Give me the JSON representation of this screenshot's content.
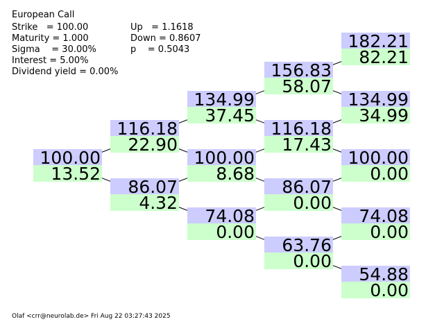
{
  "title": "European Call",
  "params_left": [
    "Strike   = 100.00",
    "Maturity = 1.000",
    "Sigma    = 30.00%",
    "Interest = 5.00%",
    "Dividend yield = 0.00%"
  ],
  "params_right": [
    "Up   = 1.1618",
    "Down = 0.8607",
    "p    = 0.5043"
  ],
  "tree": [
    [
      {
        "price": "100.00",
        "value": "13.52"
      }
    ],
    [
      {
        "price": "116.18",
        "value": "22.90"
      },
      {
        "price": "86.07",
        "value": "4.32"
      }
    ],
    [
      {
        "price": "134.99",
        "value": "37.45"
      },
      {
        "price": "100.00",
        "value": "8.68"
      },
      {
        "price": "74.08",
        "value": "0.00"
      }
    ],
    [
      {
        "price": "156.83",
        "value": "58.07"
      },
      {
        "price": "116.18",
        "value": "17.43"
      },
      {
        "price": "86.07",
        "value": "0.00"
      },
      {
        "price": "63.76",
        "value": "0.00"
      }
    ],
    [
      {
        "price": "182.21",
        "value": "82.21"
      },
      {
        "price": "134.99",
        "value": "34.99"
      },
      {
        "price": "100.00",
        "value": "0.00"
      },
      {
        "price": "74.08",
        "value": "0.00"
      },
      {
        "price": "54.88",
        "value": "0.00"
      }
    ]
  ],
  "footer": "Olaf <crr@neurolab.de> Fri Aug 22 03:27:43 2025"
}
